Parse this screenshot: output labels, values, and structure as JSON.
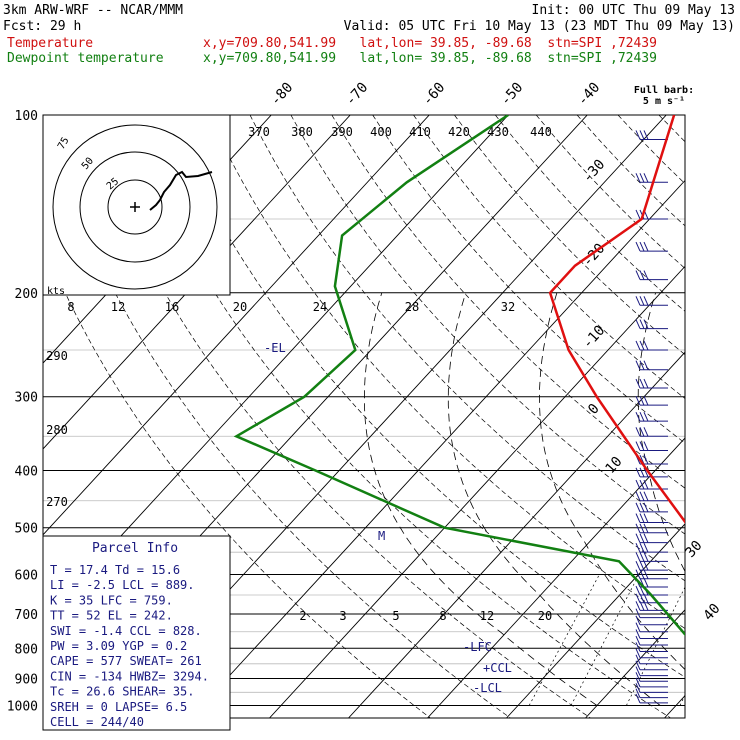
{
  "header": {
    "line1_left": "3km ARW-WRF -- NCAR/MMM",
    "line1_right": "Init: 00 UTC Thu 09 May 13",
    "line2_left": "Fcst:    29 h",
    "line2_right": "Valid: 05 UTC Fri 10 May 13 (23 MDT Thu 09 May 13)",
    "line3_label": "Temperature",
    "line3_info": "x,y=709.80,541.99   lat,lon= 39.85, -89.68  stn=SPI ,72439",
    "line4_label": "Dewpoint temperature",
    "line4_info": "x,y=709.80,541.99   lat,lon= 39.85, -89.68  stn=SPI ,72439"
  },
  "colors": {
    "temperature": "#e01010",
    "dewpoint": "#128012",
    "text": "#1a1a80",
    "header_red": "#d01010",
    "header_green": "#128012",
    "grid": "#000000"
  },
  "chart_data": {
    "type": "line",
    "title": "",
    "ylabel": "",
    "xlabel": "",
    "y_scale": "log",
    "pressure_ticks": [
      "100",
      "200",
      "300",
      "400",
      "500",
      "600",
      "700",
      "800",
      "900",
      "1000"
    ],
    "isotherm_labels": [
      "-80",
      "-70",
      "-60",
      "-50",
      "-40",
      "-30",
      "-20",
      "-10",
      "0",
      "10",
      "30",
      "40"
    ],
    "theta_labels": [
      "370",
      "380",
      "390",
      "400",
      "410",
      "420",
      "430",
      "440"
    ],
    "theta_bottom_labels": [
      "290",
      "280",
      "270"
    ],
    "mixing_ratio_labels": [
      "2",
      "3",
      "5",
      "8",
      "12",
      "20"
    ],
    "upper_axis_ticks": [
      "8",
      "12",
      "16",
      "20",
      "24",
      "28",
      "32"
    ],
    "hodograph_ring_labels": [
      "75",
      "50",
      "25"
    ],
    "hodograph_unit": "kts",
    "wind_legend": "Full barb:\n5 m s⁻¹",
    "level_markers": [
      "-EL",
      "M",
      "-LFC",
      "+CCL",
      "-LCL"
    ],
    "series": [
      {
        "name": "Temperature",
        "values": [
          [
            100,
            -59
          ],
          [
            150,
            -51
          ],
          [
            180,
            -54
          ],
          [
            200,
            -54
          ],
          [
            250,
            -45
          ],
          [
            300,
            -36
          ],
          [
            400,
            -21
          ],
          [
            500,
            -9
          ],
          [
            600,
            -2
          ],
          [
            700,
            4
          ],
          [
            800,
            9
          ],
          [
            850,
            12
          ],
          [
            900,
            15
          ],
          [
            950,
            17
          ],
          [
            980,
            17.4
          ],
          [
            990,
            16
          ]
        ]
      },
      {
        "name": "Dewpoint temperature",
        "values": [
          [
            100,
            -80
          ],
          [
            130,
            -85
          ],
          [
            160,
            -87
          ],
          [
            195,
            -82
          ],
          [
            250,
            -72
          ],
          [
            300,
            -73
          ],
          [
            350,
            -77
          ],
          [
            400,
            -63
          ],
          [
            500,
            -40
          ],
          [
            570,
            -14
          ],
          [
            650,
            -6
          ],
          [
            800,
            6
          ],
          [
            880,
            10
          ],
          [
            920,
            11
          ],
          [
            950,
            15.6
          ],
          [
            980,
            15.6
          ]
        ]
      }
    ]
  },
  "parcel_info": {
    "title": "Parcel Info",
    "rows": [
      "T   =   17.4  Td =  15.6",
      "LI  =   -2.5  LCL =  889.",
      "K   =     35  LFC =  759.",
      "TT  =     52  EL  =  242.",
      "SWI =   -1.4  CCL =  828.",
      "PW  =   3.09  YGP =   0.2",
      "CAPE =   577  SWEAT=  261",
      "CIN  =  -134  HWBZ= 3294.",
      "Tc  =   26.6  SHEAR=  35.",
      "SREH =     0  LAPSE=  6.5",
      "CELL = 244/40"
    ]
  }
}
